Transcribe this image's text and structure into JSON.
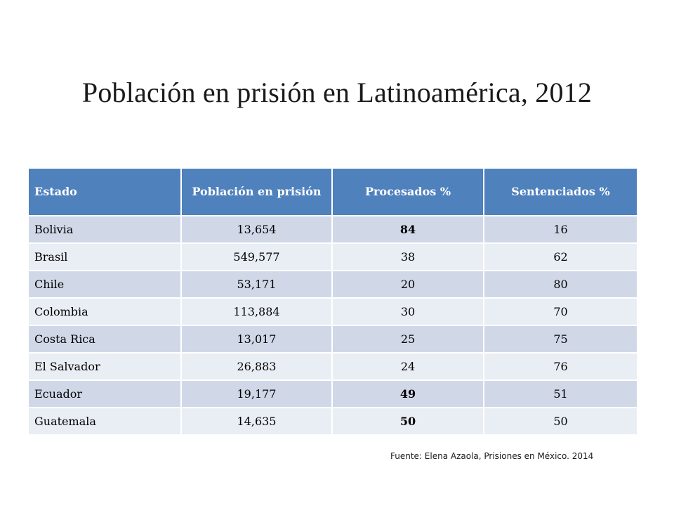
{
  "title": "Población en prisión en Latinoamérica, 2012",
  "table": {
    "headers": [
      "Estado",
      "Población en prisión",
      "Procesados %",
      "Sentenciados %"
    ],
    "rows": [
      {
        "estado": "Bolivia",
        "poblacion": "13,654",
        "procesados": "84",
        "sentenciados": "16",
        "procesados_bold": true
      },
      {
        "estado": "Brasil",
        "poblacion": "549,577",
        "procesados": "38",
        "sentenciados": "62",
        "procesados_bold": false
      },
      {
        "estado": "Chile",
        "poblacion": "53,171",
        "procesados": "20",
        "sentenciados": "80",
        "procesados_bold": false
      },
      {
        "estado": "Colombia",
        "poblacion": "113,884",
        "procesados": "30",
        "sentenciados": "70",
        "procesados_bold": false
      },
      {
        "estado": "Costa Rica",
        "poblacion": "13,017",
        "procesados": "25",
        "sentenciados": "75",
        "procesados_bold": false
      },
      {
        "estado": "El Salvador",
        "poblacion": "26,883",
        "procesados": "24",
        "sentenciados": "76",
        "procesados_bold": false
      },
      {
        "estado": "Ecuador",
        "poblacion": "19,177",
        "procesados": "49",
        "sentenciados": "51",
        "procesados_bold": true
      },
      {
        "estado": "Guatemala",
        "poblacion": "14,635",
        "procesados": "50",
        "sentenciados": "50",
        "procesados_bold": true
      }
    ]
  },
  "source": "Fuente: Elena Azaola, Prisiones en México. 2014",
  "colors": {
    "header_bg": "#4f81bd",
    "row_odd_bg": "#d0d8e8",
    "row_even_bg": "#e9edf4"
  }
}
